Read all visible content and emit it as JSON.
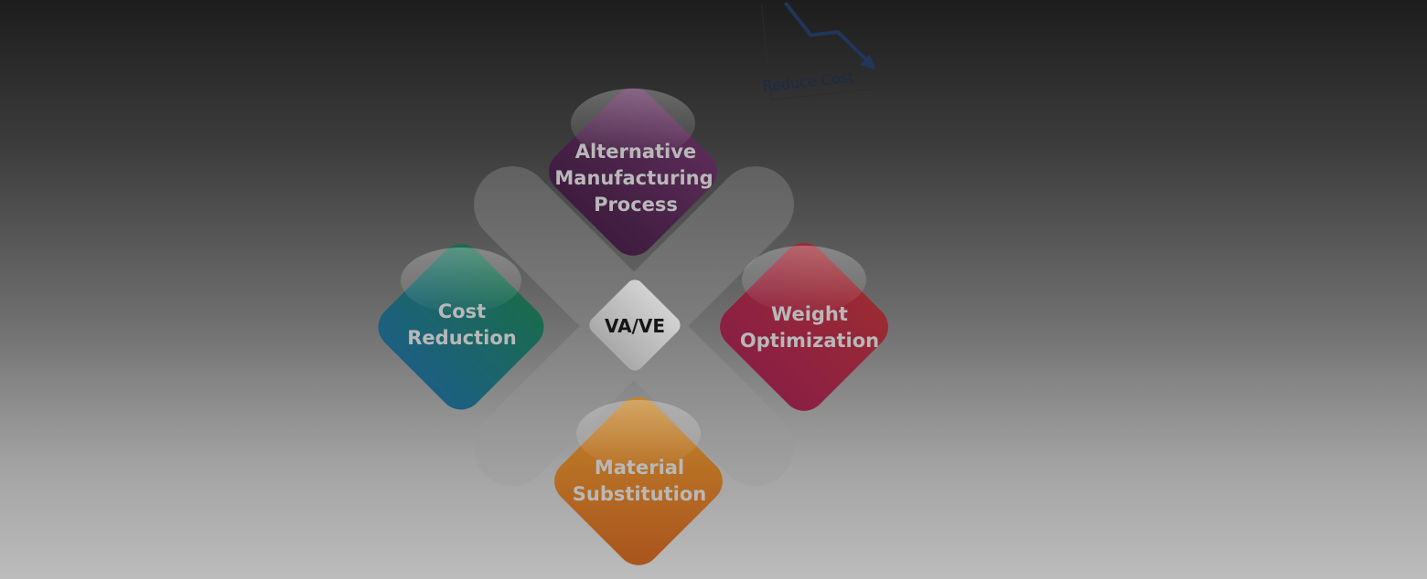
{
  "center": {
    "label": "VA/VE"
  },
  "diamonds": {
    "top": {
      "lines": [
        "Alternative",
        "Manufacturing",
        "Process"
      ]
    },
    "left": {
      "lines": [
        "Cost",
        "Reduction"
      ]
    },
    "right": {
      "lines": [
        "Weight",
        "Optimization"
      ]
    },
    "bottom": {
      "lines": [
        "Material",
        "Substitution"
      ]
    }
  },
  "chart": {
    "label": "Reduce Cost"
  },
  "colors": {
    "top_diamond": "#4a2548",
    "left_diamond": "#1d6a63",
    "right_diamond": "#8f2638",
    "bottom_diamond": "#a8651f",
    "center_tile": "#c9c9c9",
    "arrow": "#22355a"
  }
}
